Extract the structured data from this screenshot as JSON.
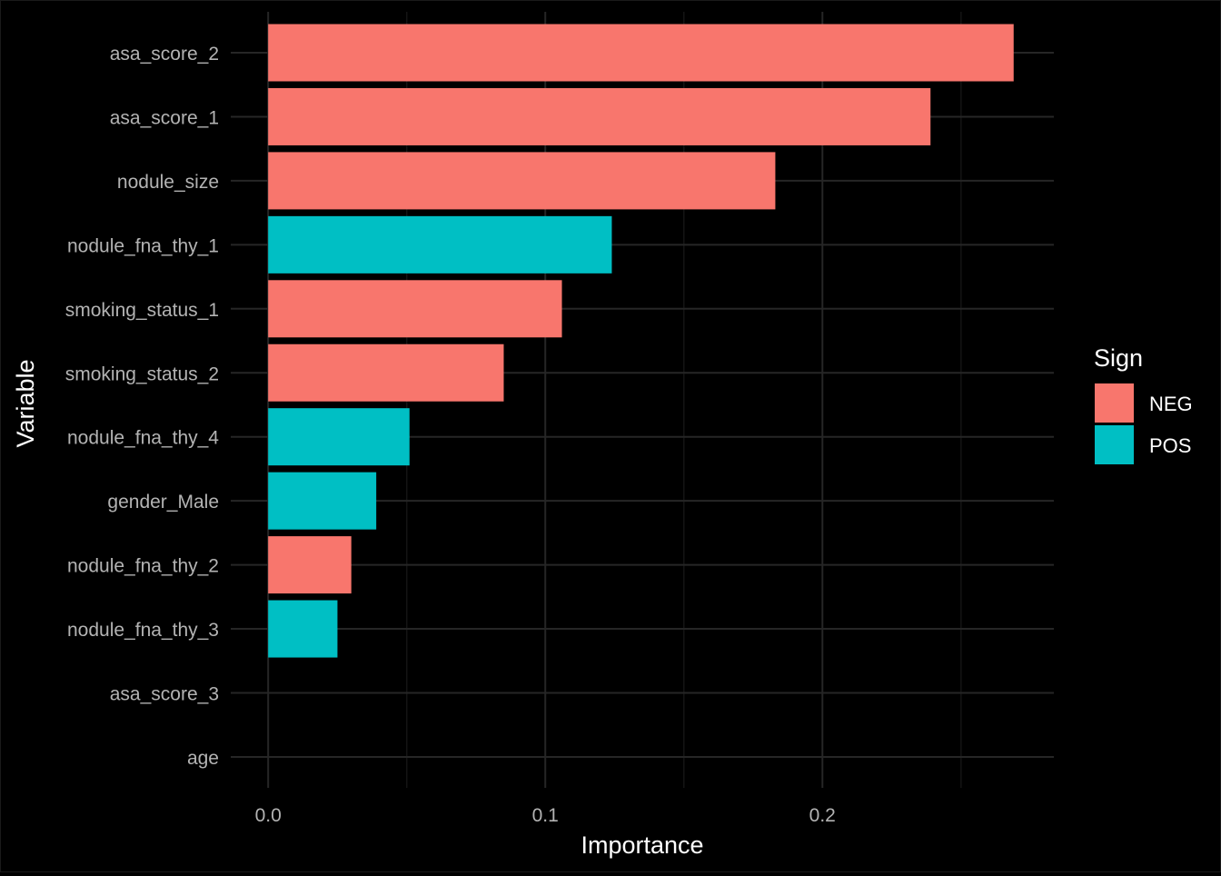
{
  "chart_data": {
    "type": "bar",
    "orientation": "horizontal",
    "title": "",
    "xlabel": "Importance",
    "ylabel": "Variable",
    "xlim": [
      -0.0135,
      0.2835
    ],
    "x_ticks": [
      0.0,
      0.1,
      0.2
    ],
    "x_tick_labels": [
      "0.0",
      "0.1",
      "0.2"
    ],
    "grid": true,
    "categories": [
      "asa_score_2",
      "asa_score_1",
      "nodule_size",
      "nodule_fna_thy_1",
      "smoking_status_1",
      "smoking_status_2",
      "nodule_fna_thy_4",
      "gender_Male",
      "nodule_fna_thy_2",
      "nodule_fna_thy_3",
      "asa_score_3",
      "age"
    ],
    "values": [
      0.269,
      0.239,
      0.183,
      0.124,
      0.106,
      0.085,
      0.051,
      0.039,
      0.03,
      0.025,
      0.0,
      0.0
    ],
    "sign": [
      "NEG",
      "NEG",
      "NEG",
      "POS",
      "NEG",
      "NEG",
      "POS",
      "POS",
      "NEG",
      "POS",
      "NEG",
      "NEG"
    ],
    "legend": {
      "title": "Sign",
      "position": "right",
      "entries": [
        {
          "name": "NEG",
          "color": "#F8766D"
        },
        {
          "name": "POS",
          "color": "#00BFC4"
        }
      ]
    },
    "colors": {
      "background": "#000000",
      "grid_major": "#262626",
      "grid_minor": "#141414",
      "tick_text": "#b3b3b3",
      "axis_title": "#ffffff"
    }
  }
}
